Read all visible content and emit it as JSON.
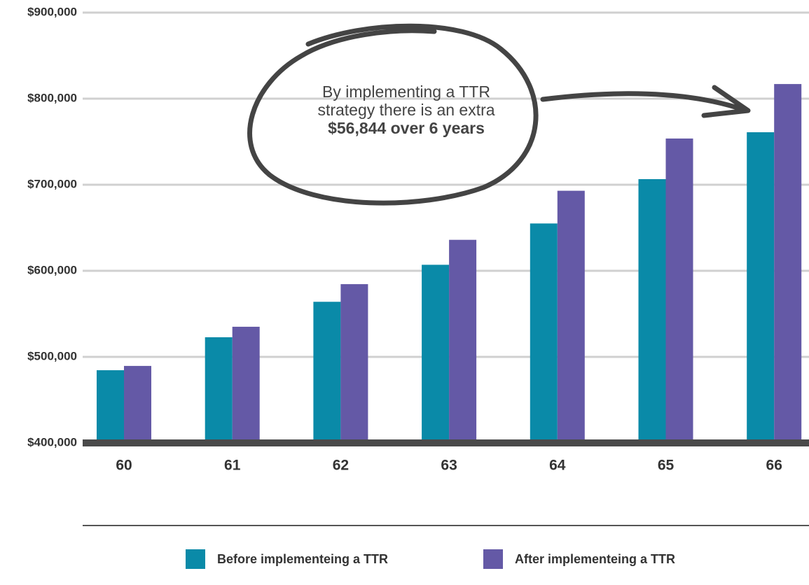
{
  "chart_data": {
    "type": "bar",
    "categories": [
      "60",
      "61",
      "62",
      "63",
      "64",
      "65",
      "66"
    ],
    "series": [
      {
        "name": "Before implementeing a TTR",
        "color": "#0a8aa8",
        "values": [
          484500,
          522800,
          564000,
          607000,
          655000,
          706500,
          761000
        ]
      },
      {
        "name": "After implementeing a TTR",
        "color": "#6459a6",
        "values": [
          489500,
          535000,
          584500,
          636000,
          693000,
          753700,
          817000
        ]
      }
    ],
    "ylim": [
      400000,
      900000
    ],
    "yticks": [
      {
        "value": 400000,
        "label": "$400,000"
      },
      {
        "value": 500000,
        "label": "$500,000"
      },
      {
        "value": 600000,
        "label": "$600,000"
      },
      {
        "value": 700000,
        "label": "$700,000"
      },
      {
        "value": 800000,
        "label": "$800,000"
      },
      {
        "value": 900000,
        "label": "$900,000"
      }
    ],
    "grid": true,
    "annotation": {
      "text": "By implementing a TTR strategy there is an extra",
      "emphasis": "$56,844 over 6 years"
    }
  }
}
